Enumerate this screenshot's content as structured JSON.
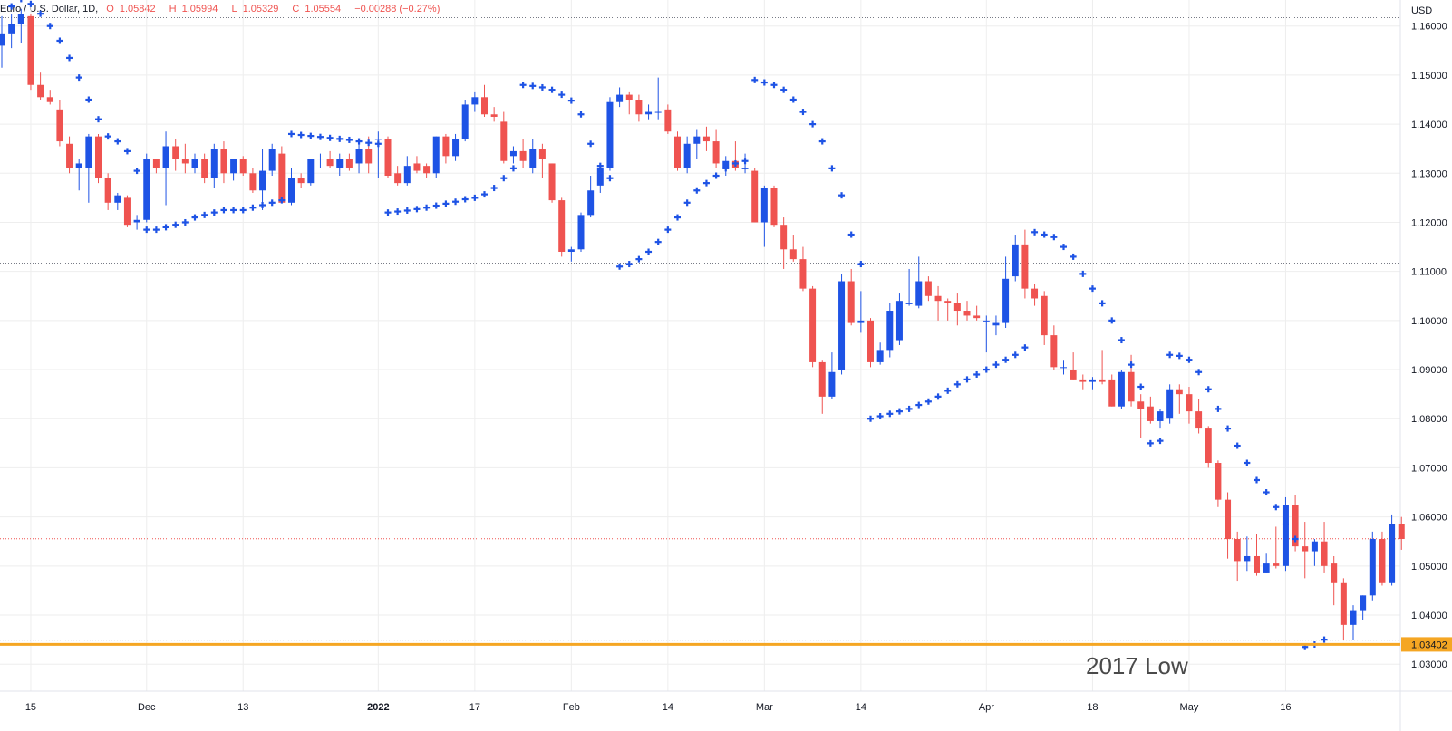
{
  "legend": {
    "symbol": "Euro / U.S. Dollar, 1D,",
    "open_label": "O",
    "open": "1.05842",
    "high_label": "H",
    "high": "1.05994",
    "low_label": "L",
    "low": "1.05329",
    "close_label": "C",
    "close": "1.05554",
    "change": "−0.00288 (−0.27%)"
  },
  "currency_label": "USD",
  "price_badge": "1.03402",
  "annotation": "2017 Low",
  "colors": {
    "up": "#1e53e5",
    "down": "#ef5350",
    "psar": "#1e53e5",
    "support": "#f5a623",
    "badge_bg": "#f5a623",
    "grid": "#eeeeee"
  },
  "chart_data": {
    "type": "candlestick",
    "y_ticks": [
      "1.16000",
      "1.15000",
      "1.14000",
      "1.13000",
      "1.12000",
      "1.11000",
      "1.10000",
      "1.09000",
      "1.08000",
      "1.07000",
      "1.06000",
      "1.05000",
      "1.04000",
      "1.03000"
    ],
    "ylim": [
      1.0245,
      1.1653
    ],
    "x_ticks": [
      {
        "label": "15",
        "i": 3
      },
      {
        "label": "Dec",
        "i": 15
      },
      {
        "label": "13",
        "i": 25
      },
      {
        "label": "2022",
        "i": 39
      },
      {
        "label": "17",
        "i": 49
      },
      {
        "label": "Feb",
        "i": 59
      },
      {
        "label": "14",
        "i": 69
      },
      {
        "label": "Mar",
        "i": 79
      },
      {
        "label": "14",
        "i": 89
      },
      {
        "label": "Apr",
        "i": 102
      },
      {
        "label": "18",
        "i": 113
      },
      {
        "label": "May",
        "i": 123
      },
      {
        "label": "16",
        "i": 133
      }
    ],
    "support_level": 1.03402,
    "horizontal_dotted_lines": [
      1.1617,
      1.1117,
      1.05554,
      1.0349
    ],
    "candles": [
      [
        1.156,
        1.162,
        1.1515,
        1.1585
      ],
      [
        1.1585,
        1.1625,
        1.1555,
        1.1605
      ],
      [
        1.1605,
        1.1635,
        1.1565,
        1.1625
      ],
      [
        1.162,
        1.1625,
        1.147,
        1.148
      ],
      [
        1.148,
        1.1505,
        1.145,
        1.1455
      ],
      [
        1.1455,
        1.147,
        1.144,
        1.1445
      ],
      [
        1.143,
        1.145,
        1.1355,
        1.1365
      ],
      [
        1.136,
        1.1375,
        1.13,
        1.131
      ],
      [
        1.131,
        1.133,
        1.1265,
        1.132
      ],
      [
        1.131,
        1.138,
        1.124,
        1.1375
      ],
      [
        1.1375,
        1.138,
        1.128,
        1.129
      ],
      [
        1.129,
        1.13,
        1.1225,
        1.124
      ],
      [
        1.124,
        1.126,
        1.1225,
        1.1255
      ],
      [
        1.125,
        1.1255,
        1.119,
        1.1195
      ],
      [
        1.12,
        1.1215,
        1.1185,
        1.1205
      ],
      [
        1.1205,
        1.134,
        1.12,
        1.133
      ],
      [
        1.133,
        1.133,
        1.13,
        1.131
      ],
      [
        1.131,
        1.1385,
        1.1235,
        1.1355
      ],
      [
        1.1355,
        1.137,
        1.1305,
        1.133
      ],
      [
        1.133,
        1.136,
        1.13,
        1.132
      ],
      [
        1.131,
        1.134,
        1.13,
        1.133
      ],
      [
        1.133,
        1.134,
        1.128,
        1.129
      ],
      [
        1.129,
        1.136,
        1.127,
        1.135
      ],
      [
        1.135,
        1.1365,
        1.128,
        1.13
      ],
      [
        1.13,
        1.133,
        1.1285,
        1.133
      ],
      [
        1.133,
        1.1335,
        1.1295,
        1.13
      ],
      [
        1.13,
        1.131,
        1.126,
        1.1265
      ],
      [
        1.1265,
        1.135,
        1.1225,
        1.1305
      ],
      [
        1.1305,
        1.136,
        1.1295,
        1.135
      ],
      [
        1.134,
        1.1355,
        1.124,
        1.124
      ],
      [
        1.124,
        1.131,
        1.1235,
        1.129
      ],
      [
        1.129,
        1.13,
        1.127,
        1.128
      ],
      [
        1.128,
        1.133,
        1.1275,
        1.133
      ],
      [
        1.133,
        1.134,
        1.131,
        1.133
      ],
      [
        1.133,
        1.1345,
        1.131,
        1.1315
      ],
      [
        1.131,
        1.134,
        1.1295,
        1.133
      ],
      [
        1.133,
        1.134,
        1.1305,
        1.131
      ],
      [
        1.132,
        1.137,
        1.13,
        1.135
      ],
      [
        1.135,
        1.1375,
        1.13,
        1.132
      ],
      [
        1.137,
        1.1385,
        1.129,
        1.137
      ],
      [
        1.137,
        1.1375,
        1.129,
        1.1295
      ],
      [
        1.13,
        1.1315,
        1.1275,
        1.128
      ],
      [
        1.128,
        1.1335,
        1.1275,
        1.1315
      ],
      [
        1.132,
        1.1335,
        1.13,
        1.1305
      ],
      [
        1.1315,
        1.132,
        1.129,
        1.13
      ],
      [
        1.13,
        1.1375,
        1.129,
        1.1375
      ],
      [
        1.1375,
        1.138,
        1.132,
        1.1335
      ],
      [
        1.1335,
        1.138,
        1.1325,
        1.137
      ],
      [
        1.137,
        1.145,
        1.1365,
        1.144
      ],
      [
        1.144,
        1.1465,
        1.1425,
        1.1455
      ],
      [
        1.1455,
        1.148,
        1.1415,
        1.142
      ],
      [
        1.142,
        1.1435,
        1.1405,
        1.1415
      ],
      [
        1.1405,
        1.1425,
        1.132,
        1.1325
      ],
      [
        1.1335,
        1.1355,
        1.132,
        1.1345
      ],
      [
        1.1345,
        1.137,
        1.131,
        1.1325
      ],
      [
        1.131,
        1.137,
        1.13,
        1.135
      ],
      [
        1.135,
        1.136,
        1.129,
        1.133
      ],
      [
        1.132,
        1.132,
        1.124,
        1.1245
      ],
      [
        1.1245,
        1.125,
        1.113,
        1.114
      ],
      [
        1.114,
        1.115,
        1.112,
        1.1145
      ],
      [
        1.1145,
        1.122,
        1.114,
        1.1215
      ],
      [
        1.1215,
        1.1295,
        1.121,
        1.1265
      ],
      [
        1.1275,
        1.131,
        1.126,
        1.131
      ],
      [
        1.131,
        1.1455,
        1.1305,
        1.1445
      ],
      [
        1.1445,
        1.1475,
        1.1435,
        1.146
      ],
      [
        1.146,
        1.1465,
        1.142,
        1.145
      ],
      [
        1.145,
        1.146,
        1.1405,
        1.142
      ],
      [
        1.142,
        1.144,
        1.141,
        1.1425
      ],
      [
        1.1425,
        1.1495,
        1.141,
        1.1425
      ],
      [
        1.143,
        1.144,
        1.138,
        1.1385
      ],
      [
        1.1375,
        1.1385,
        1.1305,
        1.131
      ],
      [
        1.131,
        1.1375,
        1.13,
        1.136
      ],
      [
        1.136,
        1.139,
        1.133,
        1.1375
      ],
      [
        1.1375,
        1.1395,
        1.1345,
        1.1365
      ],
      [
        1.1365,
        1.139,
        1.131,
        1.132
      ],
      [
        1.131,
        1.1335,
        1.1295,
        1.1325
      ],
      [
        1.1325,
        1.1365,
        1.1305,
        1.131
      ],
      [
        1.131,
        1.134,
        1.13,
        1.131
      ],
      [
        1.1305,
        1.131,
        1.12,
        1.12
      ],
      [
        1.12,
        1.1275,
        1.115,
        1.127
      ],
      [
        1.127,
        1.1275,
        1.119,
        1.1195
      ],
      [
        1.1195,
        1.121,
        1.1105,
        1.1145
      ],
      [
        1.1145,
        1.1175,
        1.112,
        1.1125
      ],
      [
        1.1125,
        1.115,
        1.106,
        1.1065
      ],
      [
        1.1065,
        1.107,
        1.0905,
        1.0915
      ],
      [
        1.0915,
        1.092,
        1.081,
        1.0845
      ],
      [
        1.0845,
        1.0935,
        1.084,
        1.0895
      ],
      [
        1.09,
        1.1095,
        1.089,
        1.108
      ],
      [
        1.108,
        1.1105,
        1.099,
        1.0995
      ],
      [
        1.0995,
        1.106,
        1.0975,
        1.1
      ],
      [
        1.1,
        1.1005,
        1.0905,
        1.0915
      ],
      [
        1.0915,
        1.0955,
        1.091,
        1.094
      ],
      [
        1.094,
        1.1035,
        1.0925,
        1.102
      ],
      [
        1.096,
        1.1055,
        1.095,
        1.104
      ],
      [
        1.1035,
        1.1105,
        1.103,
        1.1035
      ],
      [
        1.103,
        1.113,
        1.1025,
        1.108
      ],
      [
        1.108,
        1.109,
        1.104,
        1.105
      ],
      [
        1.105,
        1.107,
        1.1,
        1.104
      ],
      [
        1.104,
        1.1045,
        1.1,
        1.1035
      ],
      [
        1.1035,
        1.1055,
        1.099,
        1.102
      ],
      [
        1.102,
        1.104,
        1.1,
        1.101
      ],
      [
        1.101,
        1.103,
        1.1,
        1.1005
      ],
      [
        1.1,
        1.101,
        1.0935,
        1.1
      ],
      [
        1.099,
        1.101,
        1.097,
        1.0995
      ],
      [
        1.0995,
        1.113,
        1.0985,
        1.1085
      ],
      [
        1.109,
        1.1175,
        1.108,
        1.1155
      ],
      [
        1.1155,
        1.1185,
        1.1045,
        1.1065
      ],
      [
        1.1065,
        1.1075,
        1.103,
        1.1045
      ],
      [
        1.105,
        1.106,
        1.095,
        1.097
      ],
      [
        1.097,
        1.099,
        1.09,
        1.0905
      ],
      [
        1.0905,
        1.092,
        1.089,
        1.0905
      ],
      [
        1.09,
        1.0935,
        1.088,
        1.088
      ],
      [
        1.088,
        1.089,
        1.086,
        1.0875
      ],
      [
        1.0875,
        1.0885,
        1.086,
        1.088
      ],
      [
        1.088,
        1.094,
        1.087,
        1.0875
      ],
      [
        1.088,
        1.089,
        1.0825,
        1.0825
      ],
      [
        1.0825,
        1.09,
        1.082,
        1.0895
      ],
      [
        1.0895,
        1.093,
        1.0825,
        1.0835
      ],
      [
        1.0835,
        1.085,
        1.076,
        1.082
      ],
      [
        1.0825,
        1.0845,
        1.079,
        1.0795
      ],
      [
        1.0795,
        1.082,
        1.078,
        1.0815
      ],
      [
        1.08,
        1.087,
        1.079,
        1.086
      ],
      [
        1.086,
        1.087,
        1.081,
        1.085
      ],
      [
        1.085,
        1.0865,
        1.079,
        1.0815
      ],
      [
        1.0815,
        1.084,
        1.077,
        1.078
      ],
      [
        1.078,
        1.0785,
        1.07,
        1.071
      ],
      [
        1.071,
        1.0715,
        1.062,
        1.0635
      ],
      [
        1.0635,
        1.065,
        1.0515,
        1.0555
      ],
      [
        1.0555,
        1.057,
        1.047,
        1.051
      ],
      [
        1.051,
        1.056,
        1.049,
        1.052
      ],
      [
        1.052,
        1.0565,
        1.048,
        1.0485
      ],
      [
        1.0485,
        1.0525,
        1.0485,
        1.0505
      ],
      [
        1.0505,
        1.058,
        1.0495,
        1.05
      ],
      [
        1.05,
        1.064,
        1.049,
        1.0625
      ],
      [
        1.0625,
        1.0645,
        1.053,
        1.054
      ],
      [
        1.054,
        1.059,
        1.0475,
        1.053
      ],
      [
        1.053,
        1.0555,
        1.05,
        1.055
      ],
      [
        1.055,
        1.059,
        1.0485,
        1.05
      ],
      [
        1.0505,
        1.052,
        1.042,
        1.0465
      ],
      [
        1.0465,
        1.0475,
        1.035,
        1.038
      ],
      [
        1.038,
        1.042,
        1.035,
        1.041
      ],
      [
        1.041,
        1.044,
        1.039,
        1.044
      ],
      [
        1.044,
        1.057,
        1.043,
        1.0555
      ],
      [
        1.0555,
        1.057,
        1.046,
        1.0465
      ],
      [
        1.0465,
        1.0605,
        1.046,
        1.0585
      ],
      [
        1.0585,
        1.06,
        1.0533,
        1.0555
      ]
    ],
    "psar": [
      [
        1,
        1.164
      ],
      [
        2,
        1.1655
      ],
      [
        3,
        1.1645
      ],
      [
        4,
        1.1625
      ],
      [
        5,
        1.16
      ],
      [
        6,
        1.157
      ],
      [
        7,
        1.1535
      ],
      [
        8,
        1.1495
      ],
      [
        9,
        1.145
      ],
      [
        10,
        1.141
      ],
      [
        11,
        1.1375
      ],
      [
        12,
        1.1365
      ],
      [
        13,
        1.1345
      ],
      [
        14,
        1.1305
      ],
      [
        15,
        1.1185
      ],
      [
        16,
        1.1185
      ],
      [
        17,
        1.119
      ],
      [
        18,
        1.1195
      ],
      [
        19,
        1.12
      ],
      [
        20,
        1.121
      ],
      [
        21,
        1.1215
      ],
      [
        22,
        1.122
      ],
      [
        23,
        1.1225
      ],
      [
        24,
        1.1225
      ],
      [
        25,
        1.1225
      ],
      [
        26,
        1.123
      ],
      [
        27,
        1.1235
      ],
      [
        28,
        1.124
      ],
      [
        29,
        1.1245
      ],
      [
        30,
        1.138
      ],
      [
        31,
        1.1378
      ],
      [
        32,
        1.1376
      ],
      [
        33,
        1.1374
      ],
      [
        34,
        1.1372
      ],
      [
        35,
        1.137
      ],
      [
        36,
        1.1368
      ],
      [
        37,
        1.1365
      ],
      [
        38,
        1.1362
      ],
      [
        39,
        1.136
      ],
      [
        40,
        1.122
      ],
      [
        41,
        1.1222
      ],
      [
        42,
        1.1224
      ],
      [
        43,
        1.1227
      ],
      [
        44,
        1.123
      ],
      [
        45,
        1.1234
      ],
      [
        46,
        1.1238
      ],
      [
        47,
        1.1242
      ],
      [
        48,
        1.1247
      ],
      [
        49,
        1.125
      ],
      [
        50,
        1.1257
      ],
      [
        51,
        1.127
      ],
      [
        52,
        1.129
      ],
      [
        53,
        1.131
      ],
      [
        54,
        1.148
      ],
      [
        55,
        1.1478
      ],
      [
        56,
        1.1475
      ],
      [
        57,
        1.147
      ],
      [
        58,
        1.146
      ],
      [
        59,
        1.1448
      ],
      [
        60,
        1.142
      ],
      [
        61,
        1.136
      ],
      [
        62,
        1.1315
      ],
      [
        63,
        1.129
      ],
      [
        64,
        1.111
      ],
      [
        65,
        1.1115
      ],
      [
        66,
        1.1125
      ],
      [
        67,
        1.114
      ],
      [
        68,
        1.116
      ],
      [
        69,
        1.1185
      ],
      [
        70,
        1.121
      ],
      [
        71,
        1.124
      ],
      [
        72,
        1.1265
      ],
      [
        73,
        1.128
      ],
      [
        74,
        1.1295
      ],
      [
        75,
        1.131
      ],
      [
        76,
        1.132
      ],
      [
        77,
        1.1325
      ],
      [
        78,
        1.149
      ],
      [
        79,
        1.1485
      ],
      [
        80,
        1.148
      ],
      [
        81,
        1.147
      ],
      [
        82,
        1.145
      ],
      [
        83,
        1.1425
      ],
      [
        84,
        1.14
      ],
      [
        85,
        1.1365
      ],
      [
        86,
        1.131
      ],
      [
        87,
        1.1255
      ],
      [
        88,
        1.1175
      ],
      [
        89,
        1.1115
      ],
      [
        90,
        1.08
      ],
      [
        91,
        1.0805
      ],
      [
        92,
        1.081
      ],
      [
        93,
        1.0815
      ],
      [
        94,
        1.082
      ],
      [
        95,
        1.0828
      ],
      [
        96,
        1.0835
      ],
      [
        97,
        1.0845
      ],
      [
        98,
        1.0857
      ],
      [
        99,
        1.087
      ],
      [
        100,
        1.088
      ],
      [
        101,
        1.089
      ],
      [
        102,
        1.09
      ],
      [
        103,
        1.091
      ],
      [
        104,
        1.092
      ],
      [
        105,
        1.093
      ],
      [
        106,
        1.0945
      ],
      [
        107,
        1.118
      ],
      [
        108,
        1.1175
      ],
      [
        109,
        1.117
      ],
      [
        110,
        1.115
      ],
      [
        111,
        1.113
      ],
      [
        112,
        1.1095
      ],
      [
        113,
        1.1065
      ],
      [
        114,
        1.1035
      ],
      [
        115,
        1.1
      ],
      [
        116,
        1.096
      ],
      [
        117,
        1.091
      ],
      [
        118,
        1.0865
      ],
      [
        119,
        1.075
      ],
      [
        120,
        1.0755
      ],
      [
        121,
        1.093
      ],
      [
        122,
        1.0928
      ],
      [
        123,
        1.092
      ],
      [
        124,
        1.0895
      ],
      [
        125,
        1.086
      ],
      [
        126,
        1.082
      ],
      [
        127,
        1.078
      ],
      [
        128,
        1.0745
      ],
      [
        129,
        1.071
      ],
      [
        130,
        1.0675
      ],
      [
        131,
        1.065
      ],
      [
        132,
        1.062
      ],
      [
        133,
        1.0585
      ],
      [
        134,
        1.0555
      ],
      [
        135,
        1.0335
      ],
      [
        136,
        1.034
      ],
      [
        137,
        1.035
      ]
    ]
  }
}
